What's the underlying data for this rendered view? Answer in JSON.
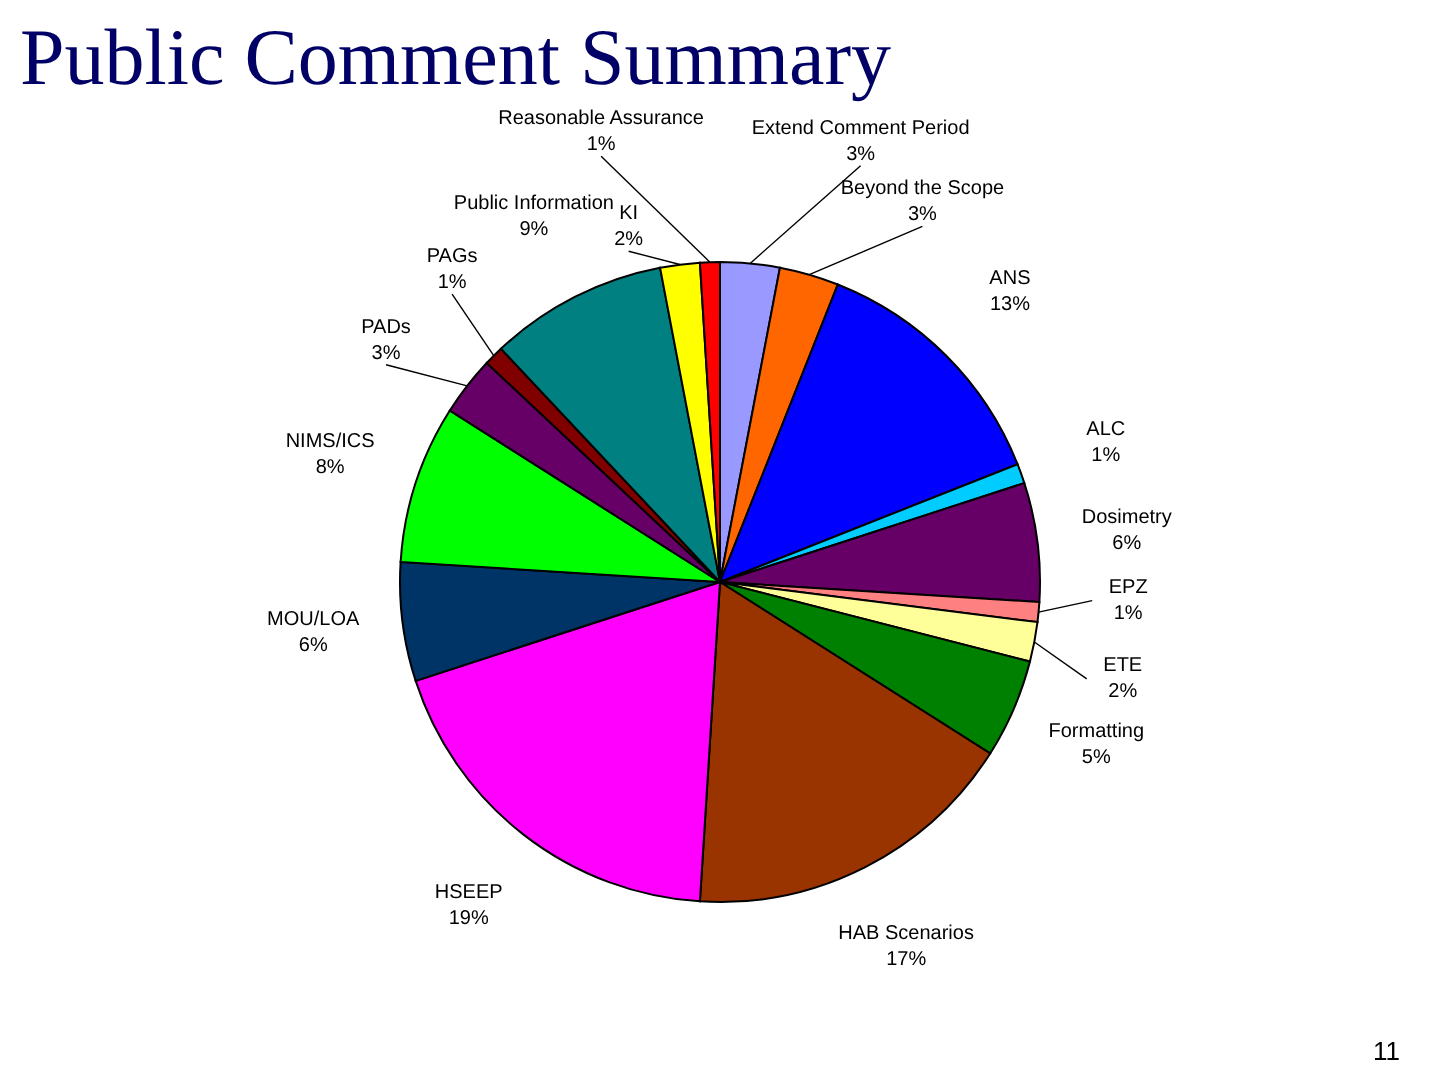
{
  "chart_data": {
    "type": "pie",
    "title": "Public Comment Summary",
    "categories": [
      "Extend Comment Period",
      "Beyond the Scope",
      "ANS",
      "ALC",
      "Dosimetry",
      "EPZ",
      "ETE",
      "Formatting",
      "HAB Scenarios",
      "HSEEP",
      "MOU/LOA",
      "NIMS/ICS",
      "PADs",
      "PAGs",
      "Public Information",
      "KI",
      "Reasonable Assurance"
    ],
    "values": [
      3,
      3,
      13,
      1,
      6,
      1,
      2,
      5,
      17,
      19,
      6,
      8,
      3,
      1,
      9,
      2,
      1
    ],
    "value_labels": [
      "3%",
      "3%",
      "13%",
      "1%",
      "6%",
      "1%",
      "2%",
      "5%",
      "17%",
      "19%",
      "6%",
      "8%",
      "3%",
      "1%",
      "9%",
      "2%",
      "1%"
    ],
    "colors": [
      "#9999ff",
      "#ff6600",
      "#0000ff",
      "#00ccff",
      "#660066",
      "#ff8080",
      "#ffff99",
      "#008000",
      "#993300",
      "#ff00ff",
      "#003366",
      "#00ff00",
      "#660066",
      "#800000",
      "#008080",
      "#ffff00",
      "#ff0000"
    ],
    "legend": false,
    "annotations": [
      "11"
    ]
  }
}
